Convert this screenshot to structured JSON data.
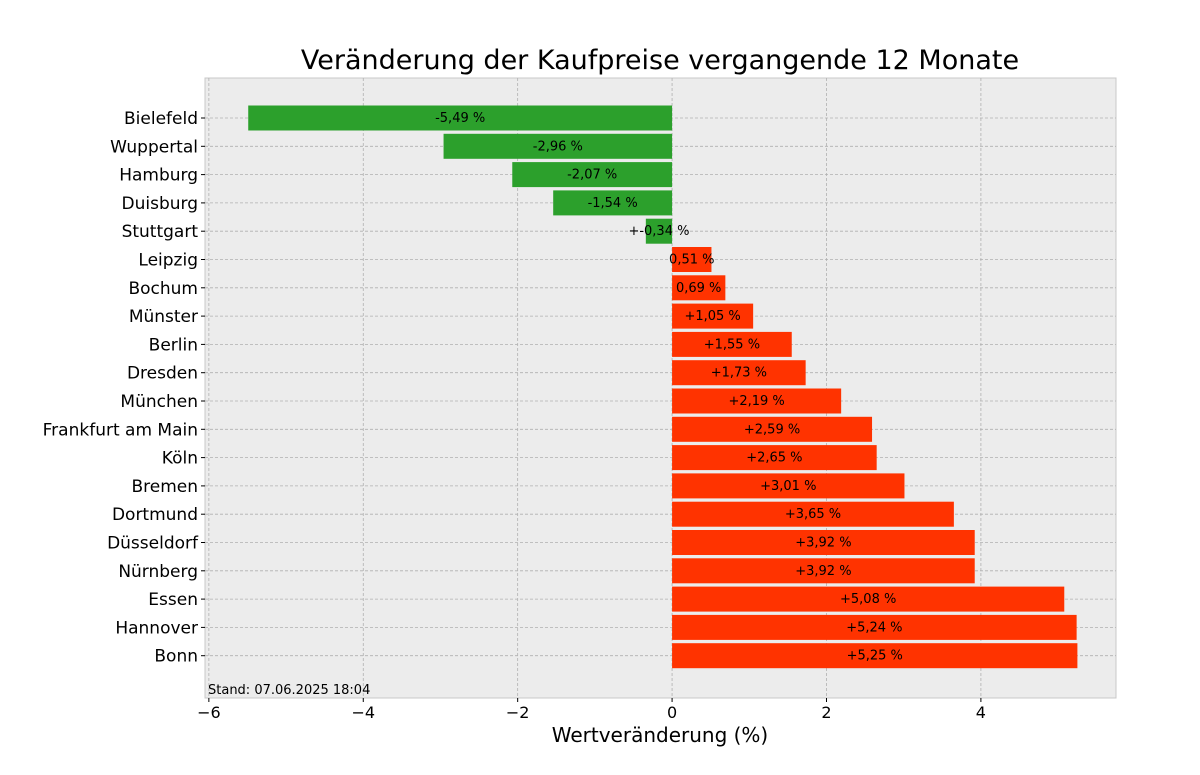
{
  "chart_data": {
    "type": "bar",
    "orientation": "horizontal",
    "title": "Veränderung der Kaufpreise vergangende 12 Monate",
    "xlabel": "Wertveränderung (%)",
    "ylabel": "",
    "xlim": [
      -6.05,
      5.75
    ],
    "xticks": [
      -6,
      -4,
      -2,
      0,
      2,
      4
    ],
    "xtick_labels": [
      "−6",
      "−4",
      "−2",
      "0",
      "2",
      "4"
    ],
    "grid": true,
    "footnote": "Stand: 07.06.2025 18:04",
    "colors": {
      "negative": "#2ca02c",
      "positive": "#ff3300",
      "plot_background": "#ececec"
    },
    "categories": [
      "Bielefeld",
      "Wuppertal",
      "Hamburg",
      "Duisburg",
      "Stuttgart",
      "Leipzig",
      "Bochum",
      "Münster",
      "Berlin",
      "Dresden",
      "München",
      "Frankfurt am Main",
      "Köln",
      "Bremen",
      "Dortmund",
      "Düsseldorf",
      "Nürnberg",
      "Essen",
      "Hannover",
      "Bonn"
    ],
    "values": [
      -5.49,
      -2.96,
      -2.07,
      -1.54,
      -0.34,
      0.51,
      0.69,
      1.05,
      1.55,
      1.73,
      2.19,
      2.59,
      2.65,
      3.01,
      3.65,
      3.92,
      3.92,
      5.08,
      5.24,
      5.25
    ],
    "data_labels": [
      "-5,49 %",
      "-2,96 %",
      "-2,07 %",
      "-1,54 %",
      "+-0,34 %",
      "0,51 %",
      "0,69 %",
      "+1,05 %",
      "+1,55 %",
      "+1,73 %",
      "+2,19 %",
      "+2,59 %",
      "+2,65 %",
      "+3,01 %",
      "+3,65 %",
      "+3,92 %",
      "+3,92 %",
      "+5,08 %",
      "+5,24 %",
      "+5,25 %"
    ]
  }
}
